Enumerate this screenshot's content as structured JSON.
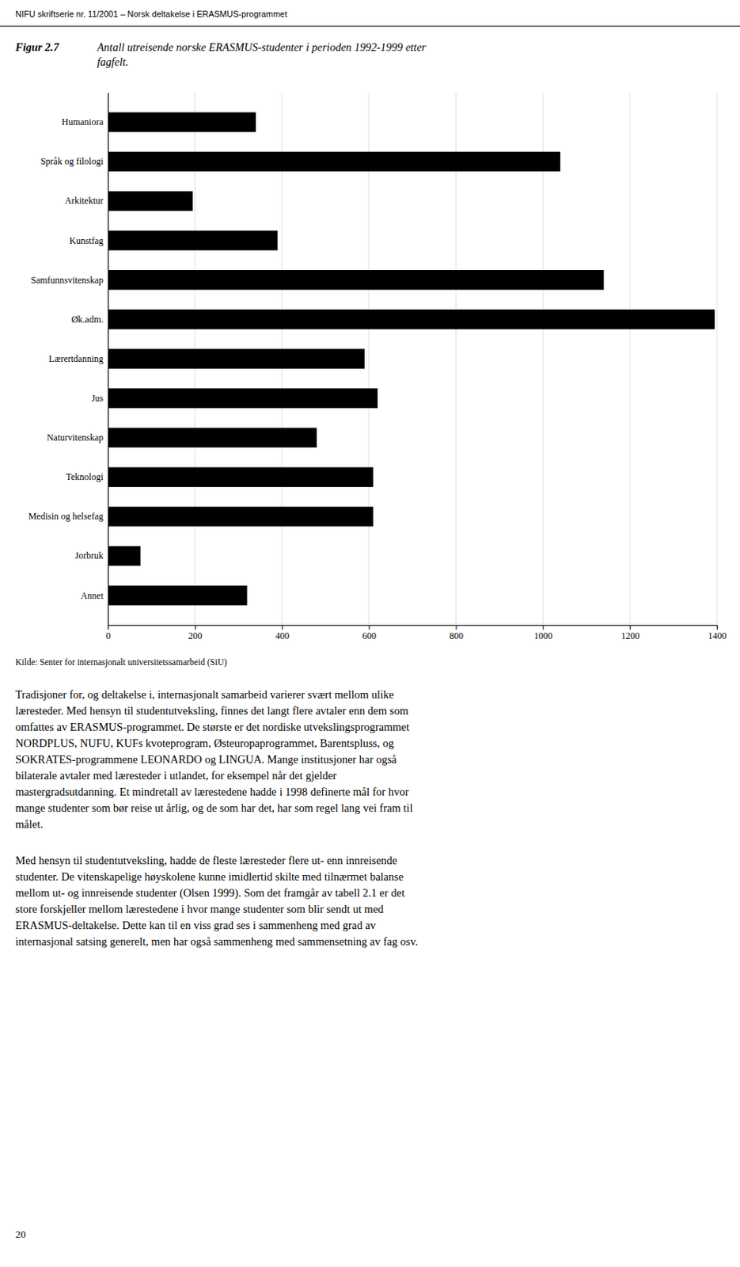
{
  "header": "NIFU skriftserie nr. 11/2001 – Norsk deltakelse i ERASMUS-programmet",
  "fig_label": "Figur 2.7",
  "chart_data": {
    "type": "bar",
    "orientation": "horizontal",
    "title": "Antall utreisende norske ERASMUS-studenter i perioden 1992-1999 etter\nfagfelt.",
    "categories": [
      "Humaniora",
      "Språk og filologi",
      "Arkitektur",
      "Kunstfag",
      "Samfunnsvitenskap",
      "Øk.adm.",
      "Lærertdanning",
      "Jus",
      "Naturvitenskap",
      "Teknologi",
      "Medisin og helsefag",
      "Jorbruk",
      "Annet"
    ],
    "values": [
      340,
      1040,
      195,
      390,
      1140,
      1395,
      590,
      620,
      480,
      610,
      610,
      75,
      320
    ],
    "color": "#000000",
    "xlim": [
      0,
      1400
    ],
    "xticks": [
      0,
      200,
      400,
      600,
      800,
      1000,
      1200,
      1400
    ],
    "grid": true
  },
  "source": "Kilde: Senter for internasjonalt universitetssamarbeid (SiU)",
  "body_paragraphs": [
    [
      "Tradisjoner for, og deltakelse i, internasjonalt samarbeid varierer svært mellom ulike",
      "læresteder. Med hensyn til studentutveksling, finnes det langt flere avtaler enn dem som",
      "omfattes av ERASMUS-programmet. De største er det nordiske utvekslingsprogrammet",
      "NORDPLUS, NUFU, KUFs kvoteprogram, Østeuropaprogrammet, Barentspluss, og",
      "SOKRATES-programmene LEONARDO og LINGUA. Mange institusjoner har også",
      "bilaterale avtaler med læresteder i utlandet, for eksempel når det gjelder",
      "mastergradsutdanning. Et mindretall av lærestedene hadde i 1998 definerte mål for hvor",
      "mange studenter som bør reise ut årlig, og de som har det, har som regel lang vei fram til",
      "målet."
    ],
    [
      "Med hensyn til studentutveksling, hadde de fleste læresteder flere ut- enn innreisende",
      "studenter. De vitenskapelige høyskolene kunne imidlertid skilte med tilnærmet balanse",
      "mellom ut- og innreisende studenter (Olsen 1999). Som det framgår av tabell 2.1 er det",
      "store forskjeller mellom lærestedene i hvor mange studenter som blir sendt ut med",
      "ERASMUS-deltakelse. Dette kan til en viss grad ses i sammenheng med grad av",
      "internasjonal satsing generelt, men har også sammenheng med sammensetning av fag osv."
    ]
  ],
  "footer": "20"
}
